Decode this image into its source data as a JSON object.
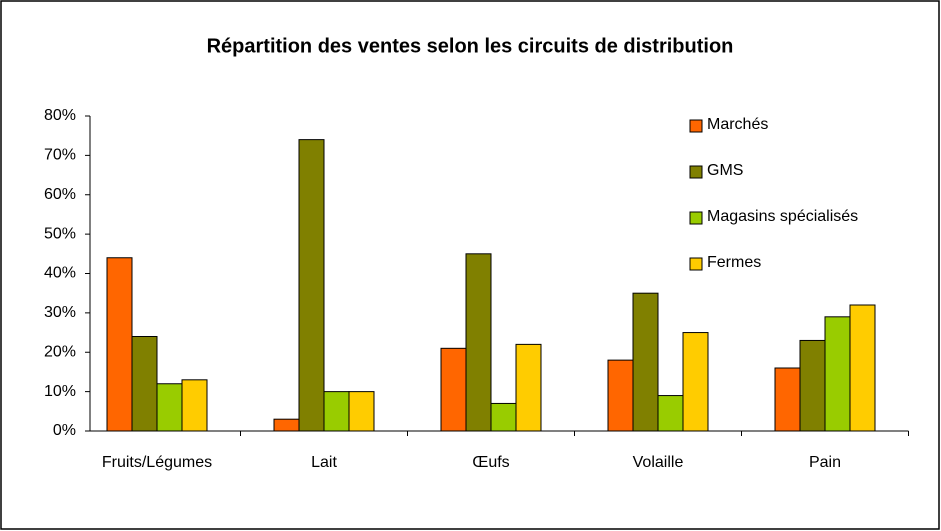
{
  "chart_data": {
    "type": "bar",
    "title": "Répartition des ventes selon les circuits de distribution",
    "categories": [
      "Fruits/Légumes",
      "Lait",
      "Œufs",
      "Volaille",
      "Pain"
    ],
    "series": [
      {
        "name": "Marchés",
        "color": "#ff6600",
        "values": [
          44,
          3,
          21,
          18,
          16
        ]
      },
      {
        "name": "GMS",
        "color": "#808000",
        "values": [
          24,
          74,
          45,
          35,
          23
        ]
      },
      {
        "name": "Magasins spécialisés",
        "color": "#99cc00",
        "values": [
          12,
          10,
          7,
          9,
          29
        ]
      },
      {
        "name": "Fermes",
        "color": "#ffcc00",
        "values": [
          13,
          10,
          22,
          25,
          32
        ]
      }
    ],
    "ylim": [
      0,
      80
    ],
    "yticks": [
      {
        "value": 0,
        "label": "0%"
      },
      {
        "value": 10,
        "label": "10%"
      },
      {
        "value": 20,
        "label": "20%"
      },
      {
        "value": 30,
        "label": "30%"
      },
      {
        "value": 40,
        "label": "40%"
      },
      {
        "value": 50,
        "label": "50%"
      },
      {
        "value": 60,
        "label": "60%"
      },
      {
        "value": 70,
        "label": "70%"
      },
      {
        "value": 80,
        "label": "80%"
      }
    ],
    "legend": "right"
  }
}
